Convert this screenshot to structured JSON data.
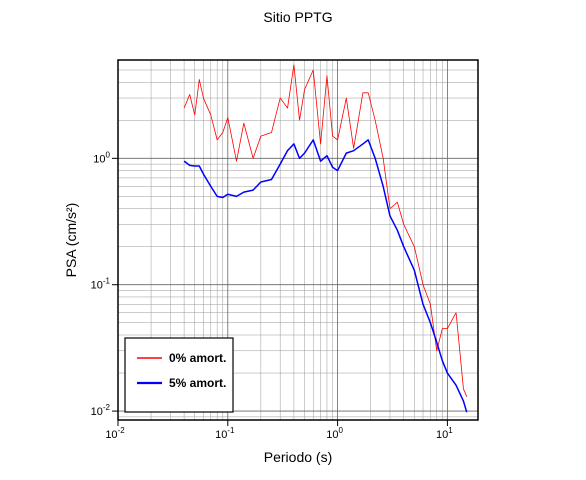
{
  "chart_data": {
    "type": "line",
    "title": "Sitio PPTG",
    "x_label": "Periodo (s)",
    "y_label": "PSA (cm/s²)",
    "log_x": true,
    "log_y": true,
    "grid": true,
    "legend": "lower left",
    "xlim": [
      0.01,
      19
    ],
    "ylim": [
      0.0085,
      6
    ],
    "xticks": [
      {
        "value": 0.01,
        "label": "10",
        "exponent": "-2"
      },
      {
        "value": 0.1,
        "label": "10",
        "exponent": "-1"
      },
      {
        "value": 1,
        "label": "10",
        "exponent": "0"
      },
      {
        "value": 10,
        "label": "10",
        "exponent": "1"
      }
    ],
    "yticks": [
      {
        "value": 0.01,
        "label": "10",
        "exponent": "-2"
      },
      {
        "value": 0.1,
        "label": "10",
        "exponent": "-1"
      },
      {
        "value": 1,
        "label": "10",
        "exponent": "0"
      }
    ],
    "x": [
      0.04,
      0.045,
      0.05,
      0.055,
      0.06,
      0.07,
      0.08,
      0.09,
      0.1,
      0.12,
      0.14,
      0.17,
      0.2,
      0.25,
      0.3,
      0.35,
      0.4,
      0.45,
      0.5,
      0.6,
      0.7,
      0.8,
      0.9,
      1.0,
      1.2,
      1.4,
      1.7,
      1.9,
      2.2,
      2.6,
      3,
      3.5,
      4,
      5,
      6,
      7,
      8,
      9,
      10,
      12,
      14,
      15
    ],
    "series": [
      {
        "name": "0% amort.",
        "color": "#ff0000",
        "width": 0.8,
        "values": [
          2.5,
          3.2,
          2.2,
          4.2,
          3.0,
          2.2,
          1.4,
          1.6,
          2.1,
          0.95,
          1.9,
          1.0,
          1.5,
          1.6,
          3.0,
          2.5,
          5.5,
          2.0,
          3.5,
          5.0,
          1.3,
          4.5,
          1.5,
          1.4,
          3.0,
          1.2,
          3.3,
          3.3,
          2.0,
          1.0,
          0.4,
          0.45,
          0.3,
          0.2,
          0.1,
          0.07,
          0.03,
          0.045,
          0.045,
          0.06,
          0.015,
          0.013
        ]
      },
      {
        "name": "5% amort.",
        "color": "#0000ff",
        "width": 1.5,
        "values": [
          0.95,
          0.88,
          0.87,
          0.87,
          0.75,
          0.6,
          0.5,
          0.49,
          0.52,
          0.5,
          0.54,
          0.56,
          0.65,
          0.68,
          0.9,
          1.15,
          1.3,
          1.0,
          1.1,
          1.4,
          0.95,
          1.05,
          0.85,
          0.8,
          1.1,
          1.15,
          1.3,
          1.4,
          1.0,
          0.6,
          0.35,
          0.27,
          0.2,
          0.13,
          0.07,
          0.05,
          0.035,
          0.025,
          0.02,
          0.016,
          0.012,
          0.0098
        ]
      }
    ]
  }
}
